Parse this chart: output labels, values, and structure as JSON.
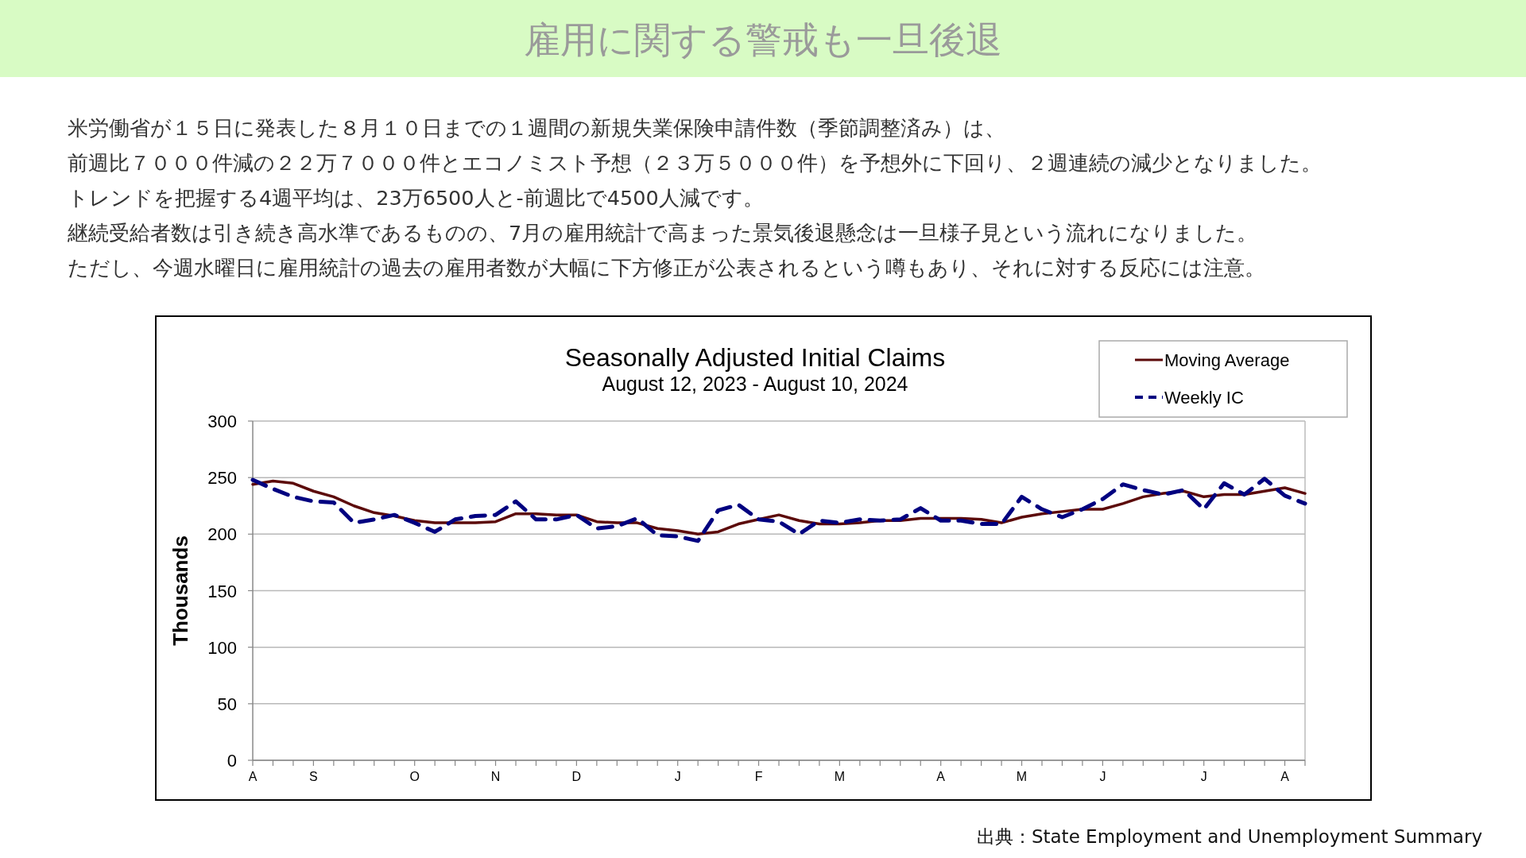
{
  "chart_data": {
    "type": "line",
    "title": "Seasonally Adjusted Initial Claims",
    "subtitle": "August 12, 2023 - August 10, 2024",
    "ylabel": "Thousands",
    "annotations": [
      "雇用に関する警戒も一旦後退",
      "米労働省が１５日に発表した８月１０日までの１週間の新規失業保険申請件数（季節調整済み）は、",
      "前週比７０００件減の２２万７０００件とエコノミスト予想（２３万５０００件）を予想外に下回り、２週連続の減少となりました。",
      "トレンドを把握する4週平均は、23万6500人と-前週比で4500人減です。",
      "継続受給者数は引き続き高水準であるものの、7月の雇用統計で高まった景気後退懸念は一旦様子見という流れになりました。",
      "ただし、今週水曜日に雇用統計の過去の雇用者数が大幅に下方修正が公表されるという噂もあり、それに対する反応には注意。",
      "出典：State Employment and Unemployment Summary"
    ],
    "categories": [
      "A",
      null,
      null,
      "S",
      null,
      null,
      null,
      null,
      "O",
      null,
      null,
      null,
      "N",
      null,
      null,
      null,
      "D",
      null,
      null,
      null,
      null,
      "J",
      null,
      null,
      null,
      "F",
      null,
      null,
      null,
      "M",
      null,
      null,
      null,
      null,
      "A",
      null,
      null,
      null,
      "M",
      null,
      null,
      null,
      "J",
      null,
      null,
      null,
      null,
      "J",
      null,
      null,
      null,
      "A",
      null
    ],
    "series": [
      {
        "name": "Moving Average",
        "color": "#5c0a0a",
        "line_style": "solid",
        "values": [
          244,
          247,
          245,
          238,
          233,
          225,
          219,
          216,
          212,
          210,
          210,
          210,
          211,
          218,
          218,
          217,
          217,
          211,
          210,
          210,
          205,
          203,
          200,
          202,
          209,
          213,
          217,
          212,
          209,
          209,
          210,
          212,
          212,
          214,
          214,
          214,
          213,
          210,
          215,
          218,
          220,
          222,
          222,
          227,
          233,
          236,
          238,
          233,
          235,
          235,
          238,
          241,
          236
        ]
      },
      {
        "name": "Weekly IC",
        "color": "#000080",
        "line_style": "dashed",
        "values": [
          248,
          240,
          233,
          229,
          228,
          210,
          213,
          217,
          210,
          202,
          213,
          216,
          217,
          229,
          213,
          213,
          217,
          205,
          207,
          214,
          199,
          198,
          194,
          221,
          226,
          213,
          211,
          200,
          212,
          210,
          213,
          212,
          213,
          223,
          212,
          212,
          209,
          209,
          233,
          222,
          215,
          222,
          231,
          244,
          239,
          235,
          239,
          222,
          245,
          235,
          249,
          234,
          227
        ]
      }
    ],
    "ylim": [
      0,
      300
    ],
    "yticks": [
      0,
      50,
      100,
      150,
      200,
      250,
      300
    ],
    "grid": "y",
    "legend": "top right"
  }
}
